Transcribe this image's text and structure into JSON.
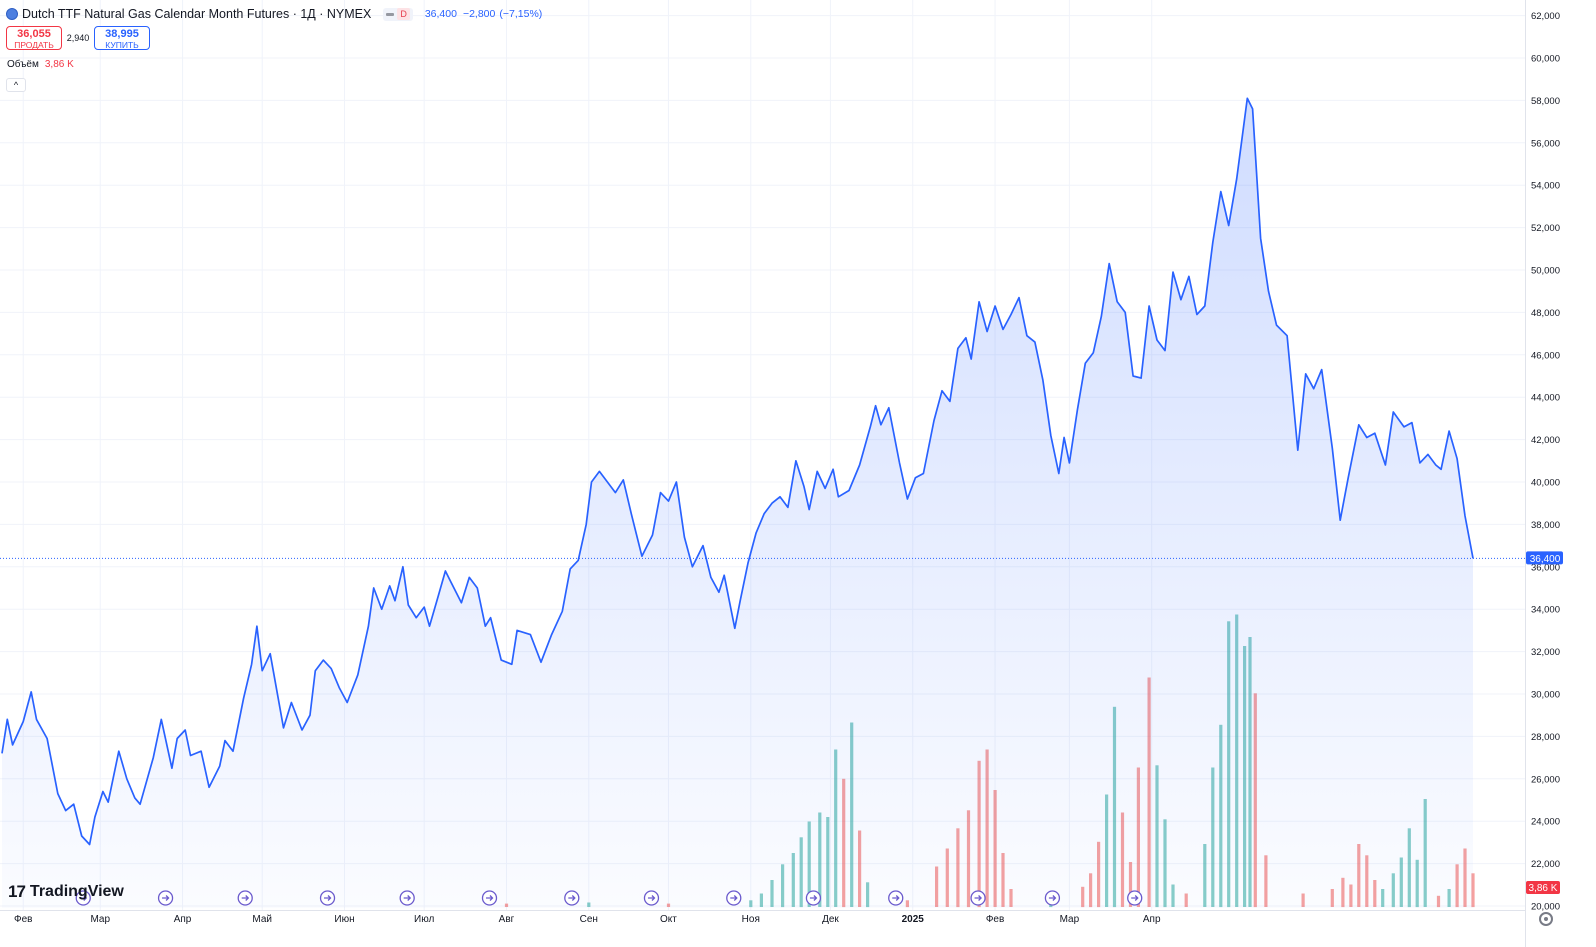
{
  "header": {
    "title": "Dutch TTF Natural Gas Calendar Month Futures · 1Д · NYMEX",
    "market_badge": "D",
    "last": "36,400",
    "change": "−2,800",
    "change_pct": "(−7,15%)"
  },
  "trade": {
    "sell_price": "36,055",
    "sell_label": "ПРОДАТЬ",
    "spread": "2,940",
    "buy_price": "38,995",
    "buy_label": "КУПИТЬ"
  },
  "volume_legend": {
    "label": "Объём",
    "value": "3,86 K"
  },
  "logo": {
    "text": "TradingView"
  },
  "colors": {
    "line": "#2962ff",
    "vol_up": "#26a69a",
    "vol_down": "#ef5350",
    "sell": "#f23645",
    "buy": "#2962ff"
  },
  "chart_data": {
    "type": "area",
    "series_line": "price",
    "y_ticks": [
      "20,000",
      "22,000",
      "24,000",
      "26,000",
      "28,000",
      "30,000",
      "32,000",
      "34,000",
      "36,000",
      "38,000",
      "40,000",
      "42,000",
      "44,000",
      "46,000",
      "48,000",
      "50,000",
      "52,000",
      "54,000",
      "56,000",
      "58,000",
      "60,000",
      "62,000"
    ],
    "y_tick_values": [
      20,
      22,
      24,
      26,
      28,
      30,
      32,
      34,
      36,
      38,
      40,
      42,
      44,
      46,
      48,
      50,
      52,
      54,
      56,
      58,
      60,
      62
    ],
    "x_labels": [
      "Фев",
      "Мар",
      "Апр",
      "Май",
      "Июн",
      "Июл",
      "Авг",
      "Сен",
      "Окт",
      "Ноя",
      "Дек",
      "2025",
      "Фев",
      "Мар",
      "Апр"
    ],
    "x_label_dates": [
      "2024-02-01",
      "2024-03-01",
      "2024-04-01",
      "2024-05-01",
      "2024-06-01",
      "2024-07-01",
      "2024-08-01",
      "2024-09-01",
      "2024-10-01",
      "2024-11-01",
      "2024-12-01",
      "2025-01-01",
      "2025-02-01",
      "2025-03-01",
      "2025-04-01"
    ],
    "last_price_label": "36,400",
    "last_price": 36.4,
    "last_volume_label": "3,86 K",
    "price_points": [
      [
        "2024-01-24",
        27.2
      ],
      [
        "2024-01-26",
        28.8
      ],
      [
        "2024-01-28",
        27.6
      ],
      [
        "2024-02-01",
        28.7
      ],
      [
        "2024-02-04",
        30.1
      ],
      [
        "2024-02-06",
        28.8
      ],
      [
        "2024-02-10",
        27.9
      ],
      [
        "2024-02-14",
        25.3
      ],
      [
        "2024-02-17",
        24.5
      ],
      [
        "2024-02-20",
        24.8
      ],
      [
        "2024-02-23",
        23.3
      ],
      [
        "2024-02-26",
        22.9
      ],
      [
        "2024-02-28",
        24.2
      ],
      [
        "2024-03-02",
        25.4
      ],
      [
        "2024-03-04",
        24.9
      ],
      [
        "2024-03-08",
        27.3
      ],
      [
        "2024-03-11",
        26.0
      ],
      [
        "2024-03-14",
        25.1
      ],
      [
        "2024-03-16",
        24.8
      ],
      [
        "2024-03-21",
        27.0
      ],
      [
        "2024-03-24",
        28.8
      ],
      [
        "2024-03-28",
        26.5
      ],
      [
        "2024-03-30",
        27.9
      ],
      [
        "2024-04-02",
        28.3
      ],
      [
        "2024-04-04",
        27.1
      ],
      [
        "2024-04-08",
        27.3
      ],
      [
        "2024-04-11",
        25.6
      ],
      [
        "2024-04-15",
        26.6
      ],
      [
        "2024-04-17",
        27.8
      ],
      [
        "2024-04-20",
        27.3
      ],
      [
        "2024-04-24",
        29.8
      ],
      [
        "2024-04-27",
        31.4
      ],
      [
        "2024-04-29",
        33.2
      ],
      [
        "2024-05-01",
        31.1
      ],
      [
        "2024-05-04",
        31.9
      ],
      [
        "2024-05-09",
        28.4
      ],
      [
        "2024-05-12",
        29.6
      ],
      [
        "2024-05-16",
        28.3
      ],
      [
        "2024-05-19",
        29.0
      ],
      [
        "2024-05-21",
        31.1
      ],
      [
        "2024-05-24",
        31.6
      ],
      [
        "2024-05-27",
        31.2
      ],
      [
        "2024-05-30",
        30.3
      ],
      [
        "2024-06-02",
        29.6
      ],
      [
        "2024-06-06",
        30.9
      ],
      [
        "2024-06-10",
        33.2
      ],
      [
        "2024-06-12",
        35.0
      ],
      [
        "2024-06-15",
        34.0
      ],
      [
        "2024-06-18",
        35.1
      ],
      [
        "2024-06-20",
        34.4
      ],
      [
        "2024-06-23",
        36.0
      ],
      [
        "2024-06-25",
        34.2
      ],
      [
        "2024-06-28",
        33.6
      ],
      [
        "2024-07-01",
        34.1
      ],
      [
        "2024-07-03",
        33.2
      ],
      [
        "2024-07-06",
        34.5
      ],
      [
        "2024-07-09",
        35.8
      ],
      [
        "2024-07-11",
        35.3
      ],
      [
        "2024-07-15",
        34.3
      ],
      [
        "2024-07-18",
        35.5
      ],
      [
        "2024-07-21",
        35.0
      ],
      [
        "2024-07-24",
        33.2
      ],
      [
        "2024-07-26",
        33.6
      ],
      [
        "2024-07-30",
        31.6
      ],
      [
        "2024-08-03",
        31.4
      ],
      [
        "2024-08-05",
        33.0
      ],
      [
        "2024-08-10",
        32.8
      ],
      [
        "2024-08-14",
        31.5
      ],
      [
        "2024-08-18",
        32.8
      ],
      [
        "2024-08-22",
        33.9
      ],
      [
        "2024-08-25",
        35.9
      ],
      [
        "2024-08-28",
        36.3
      ],
      [
        "2024-08-31",
        38.0
      ],
      [
        "2024-09-02",
        40.0
      ],
      [
        "2024-09-05",
        40.5
      ],
      [
        "2024-09-08",
        40.0
      ],
      [
        "2024-09-11",
        39.5
      ],
      [
        "2024-09-14",
        40.1
      ],
      [
        "2024-09-17",
        38.5
      ],
      [
        "2024-09-21",
        36.5
      ],
      [
        "2024-09-25",
        37.5
      ],
      [
        "2024-09-28",
        39.5
      ],
      [
        "2024-10-01",
        39.1
      ],
      [
        "2024-10-04",
        40.0
      ],
      [
        "2024-10-07",
        37.4
      ],
      [
        "2024-10-10",
        36.0
      ],
      [
        "2024-10-14",
        37.0
      ],
      [
        "2024-10-17",
        35.5
      ],
      [
        "2024-10-20",
        34.8
      ],
      [
        "2024-10-22",
        35.6
      ],
      [
        "2024-10-26",
        33.1
      ],
      [
        "2024-10-28",
        34.4
      ],
      [
        "2024-10-31",
        36.2
      ],
      [
        "2024-11-03",
        37.6
      ],
      [
        "2024-11-06",
        38.5
      ],
      [
        "2024-11-09",
        39.0
      ],
      [
        "2024-11-12",
        39.3
      ],
      [
        "2024-11-15",
        38.8
      ],
      [
        "2024-11-18",
        41.0
      ],
      [
        "2024-11-21",
        39.8
      ],
      [
        "2024-11-23",
        38.7
      ],
      [
        "2024-11-26",
        40.5
      ],
      [
        "2024-11-29",
        39.7
      ],
      [
        "2024-12-02",
        40.6
      ],
      [
        "2024-12-04",
        39.3
      ],
      [
        "2024-12-08",
        39.6
      ],
      [
        "2024-12-12",
        40.8
      ],
      [
        "2024-12-16",
        42.6
      ],
      [
        "2024-12-18",
        43.6
      ],
      [
        "2024-12-20",
        42.7
      ],
      [
        "2024-12-23",
        43.5
      ],
      [
        "2024-12-27",
        40.9
      ],
      [
        "2024-12-30",
        39.2
      ],
      [
        "2025-01-02",
        40.2
      ],
      [
        "2025-01-05",
        40.4
      ],
      [
        "2025-01-09",
        42.9
      ],
      [
        "2025-01-12",
        44.3
      ],
      [
        "2025-01-15",
        43.8
      ],
      [
        "2025-01-18",
        46.3
      ],
      [
        "2025-01-21",
        46.8
      ],
      [
        "2025-01-23",
        45.8
      ],
      [
        "2025-01-26",
        48.5
      ],
      [
        "2025-01-29",
        47.1
      ],
      [
        "2025-02-01",
        48.3
      ],
      [
        "2025-02-04",
        47.2
      ],
      [
        "2025-02-07",
        47.9
      ],
      [
        "2025-02-10",
        48.7
      ],
      [
        "2025-02-13",
        46.9
      ],
      [
        "2025-02-16",
        46.6
      ],
      [
        "2025-02-19",
        44.8
      ],
      [
        "2025-02-22",
        42.2
      ],
      [
        "2025-02-25",
        40.4
      ],
      [
        "2025-02-27",
        42.1
      ],
      [
        "2025-03-01",
        40.9
      ],
      [
        "2025-03-04",
        43.4
      ],
      [
        "2025-03-07",
        45.6
      ],
      [
        "2025-03-10",
        46.1
      ],
      [
        "2025-03-13",
        47.8
      ],
      [
        "2025-03-16",
        50.3
      ],
      [
        "2025-03-19",
        48.5
      ],
      [
        "2025-03-22",
        48.0
      ],
      [
        "2025-03-25",
        45.0
      ],
      [
        "2025-03-28",
        44.9
      ],
      [
        "2025-03-31",
        48.3
      ],
      [
        "2025-04-03",
        46.7
      ],
      [
        "2025-04-06",
        46.2
      ],
      [
        "2025-04-09",
        49.9
      ],
      [
        "2025-04-12",
        48.6
      ],
      [
        "2025-04-15",
        49.7
      ],
      [
        "2025-04-18",
        47.9
      ],
      [
        "2025-04-21",
        48.3
      ],
      [
        "2025-04-24",
        51.3
      ],
      [
        "2025-04-27",
        53.7
      ],
      [
        "2025-04-30",
        52.1
      ],
      [
        "2025-05-03",
        54.3
      ],
      [
        "2025-05-07",
        58.1
      ],
      [
        "2025-05-09",
        57.6
      ],
      [
        "2025-05-12",
        51.5
      ],
      [
        "2025-05-15",
        49.0
      ],
      [
        "2025-05-18",
        47.4
      ],
      [
        "2025-05-22",
        46.9
      ],
      [
        "2025-05-26",
        41.5
      ],
      [
        "2025-05-29",
        45.1
      ],
      [
        "2025-06-01",
        44.4
      ],
      [
        "2025-06-04",
        45.3
      ],
      [
        "2025-06-08",
        41.6
      ],
      [
        "2025-06-11",
        38.2
      ],
      [
        "2025-06-14",
        40.2
      ],
      [
        "2025-06-18",
        42.7
      ],
      [
        "2025-06-21",
        42.1
      ],
      [
        "2025-06-24",
        42.3
      ],
      [
        "2025-06-28",
        40.8
      ],
      [
        "2025-07-01",
        43.3
      ],
      [
        "2025-07-05",
        42.6
      ],
      [
        "2025-07-08",
        42.8
      ],
      [
        "2025-07-11",
        40.9
      ],
      [
        "2025-07-14",
        41.3
      ],
      [
        "2025-07-17",
        40.8
      ],
      [
        "2025-07-19",
        40.6
      ],
      [
        "2025-07-22",
        42.4
      ],
      [
        "2025-07-25",
        41.1
      ],
      [
        "2025-07-28",
        38.4
      ],
      [
        "2025-07-31",
        36.4
      ]
    ],
    "volume_points": [
      [
        "2024-08-01",
        0.15,
        "down"
      ],
      [
        "2024-09-01",
        0.2,
        "up"
      ],
      [
        "2024-10-01",
        0.15,
        "down"
      ],
      [
        "2024-11-01",
        0.3,
        "up"
      ],
      [
        "2024-11-05",
        0.6,
        "up"
      ],
      [
        "2024-11-09",
        1.2,
        "up"
      ],
      [
        "2024-11-13",
        1.9,
        "up"
      ],
      [
        "2024-11-17",
        2.4,
        "up"
      ],
      [
        "2024-11-20",
        3.1,
        "up"
      ],
      [
        "2024-11-23",
        3.8,
        "up"
      ],
      [
        "2024-11-27",
        4.2,
        "up"
      ],
      [
        "2024-11-30",
        4.0,
        "up"
      ],
      [
        "2024-12-03",
        7.0,
        "up"
      ],
      [
        "2024-12-06",
        5.7,
        "down"
      ],
      [
        "2024-12-09",
        8.2,
        "up"
      ],
      [
        "2024-12-12",
        3.4,
        "down"
      ],
      [
        "2024-12-15",
        1.1,
        "up"
      ],
      [
        "2024-12-30",
        0.3,
        "down"
      ],
      [
        "2025-01-10",
        1.8,
        "down"
      ],
      [
        "2025-01-14",
        2.6,
        "down"
      ],
      [
        "2025-01-18",
        3.5,
        "down"
      ],
      [
        "2025-01-22",
        4.3,
        "down"
      ],
      [
        "2025-01-26",
        6.5,
        "down"
      ],
      [
        "2025-01-29",
        7.0,
        "down"
      ],
      [
        "2025-02-01",
        5.2,
        "down"
      ],
      [
        "2025-02-04",
        2.4,
        "down"
      ],
      [
        "2025-02-07",
        0.8,
        "down"
      ],
      [
        "2025-02-22",
        0.3,
        "up"
      ],
      [
        "2025-03-06",
        0.9,
        "down"
      ],
      [
        "2025-03-09",
        1.5,
        "down"
      ],
      [
        "2025-03-12",
        2.9,
        "down"
      ],
      [
        "2025-03-15",
        5.0,
        "up"
      ],
      [
        "2025-03-18",
        8.9,
        "up"
      ],
      [
        "2025-03-21",
        4.2,
        "down"
      ],
      [
        "2025-03-24",
        2.0,
        "down"
      ],
      [
        "2025-03-27",
        6.2,
        "down"
      ],
      [
        "2025-03-31",
        10.2,
        "down"
      ],
      [
        "2025-04-03",
        6.3,
        "up"
      ],
      [
        "2025-04-06",
        3.9,
        "up"
      ],
      [
        "2025-04-09",
        1.0,
        "up"
      ],
      [
        "2025-04-14",
        0.6,
        "down"
      ],
      [
        "2025-04-21",
        2.8,
        "up"
      ],
      [
        "2025-04-24",
        6.2,
        "up"
      ],
      [
        "2025-04-27",
        8.1,
        "up"
      ],
      [
        "2025-04-30",
        12.7,
        "up"
      ],
      [
        "2025-05-03",
        13.0,
        "up"
      ],
      [
        "2025-05-06",
        11.6,
        "up"
      ],
      [
        "2025-05-08",
        12.0,
        "up"
      ],
      [
        "2025-05-10",
        9.5,
        "down"
      ],
      [
        "2025-05-14",
        2.3,
        "down"
      ],
      [
        "2025-05-28",
        0.6,
        "down"
      ],
      [
        "2025-06-08",
        0.8,
        "down"
      ],
      [
        "2025-06-12",
        1.3,
        "down"
      ],
      [
        "2025-06-15",
        1.0,
        "down"
      ],
      [
        "2025-06-18",
        2.8,
        "down"
      ],
      [
        "2025-06-21",
        2.3,
        "down"
      ],
      [
        "2025-06-24",
        1.2,
        "down"
      ],
      [
        "2025-06-27",
        0.8,
        "up"
      ],
      [
        "2025-07-01",
        1.5,
        "up"
      ],
      [
        "2025-07-04",
        2.2,
        "up"
      ],
      [
        "2025-07-07",
        3.5,
        "up"
      ],
      [
        "2025-07-10",
        2.1,
        "up"
      ],
      [
        "2025-07-13",
        4.8,
        "up"
      ],
      [
        "2025-07-18",
        0.5,
        "down"
      ],
      [
        "2025-07-22",
        0.8,
        "up"
      ],
      [
        "2025-07-25",
        1.9,
        "down"
      ],
      [
        "2025-07-28",
        2.6,
        "down"
      ],
      [
        "2025-07-31",
        1.5,
        "down"
      ]
    ]
  }
}
